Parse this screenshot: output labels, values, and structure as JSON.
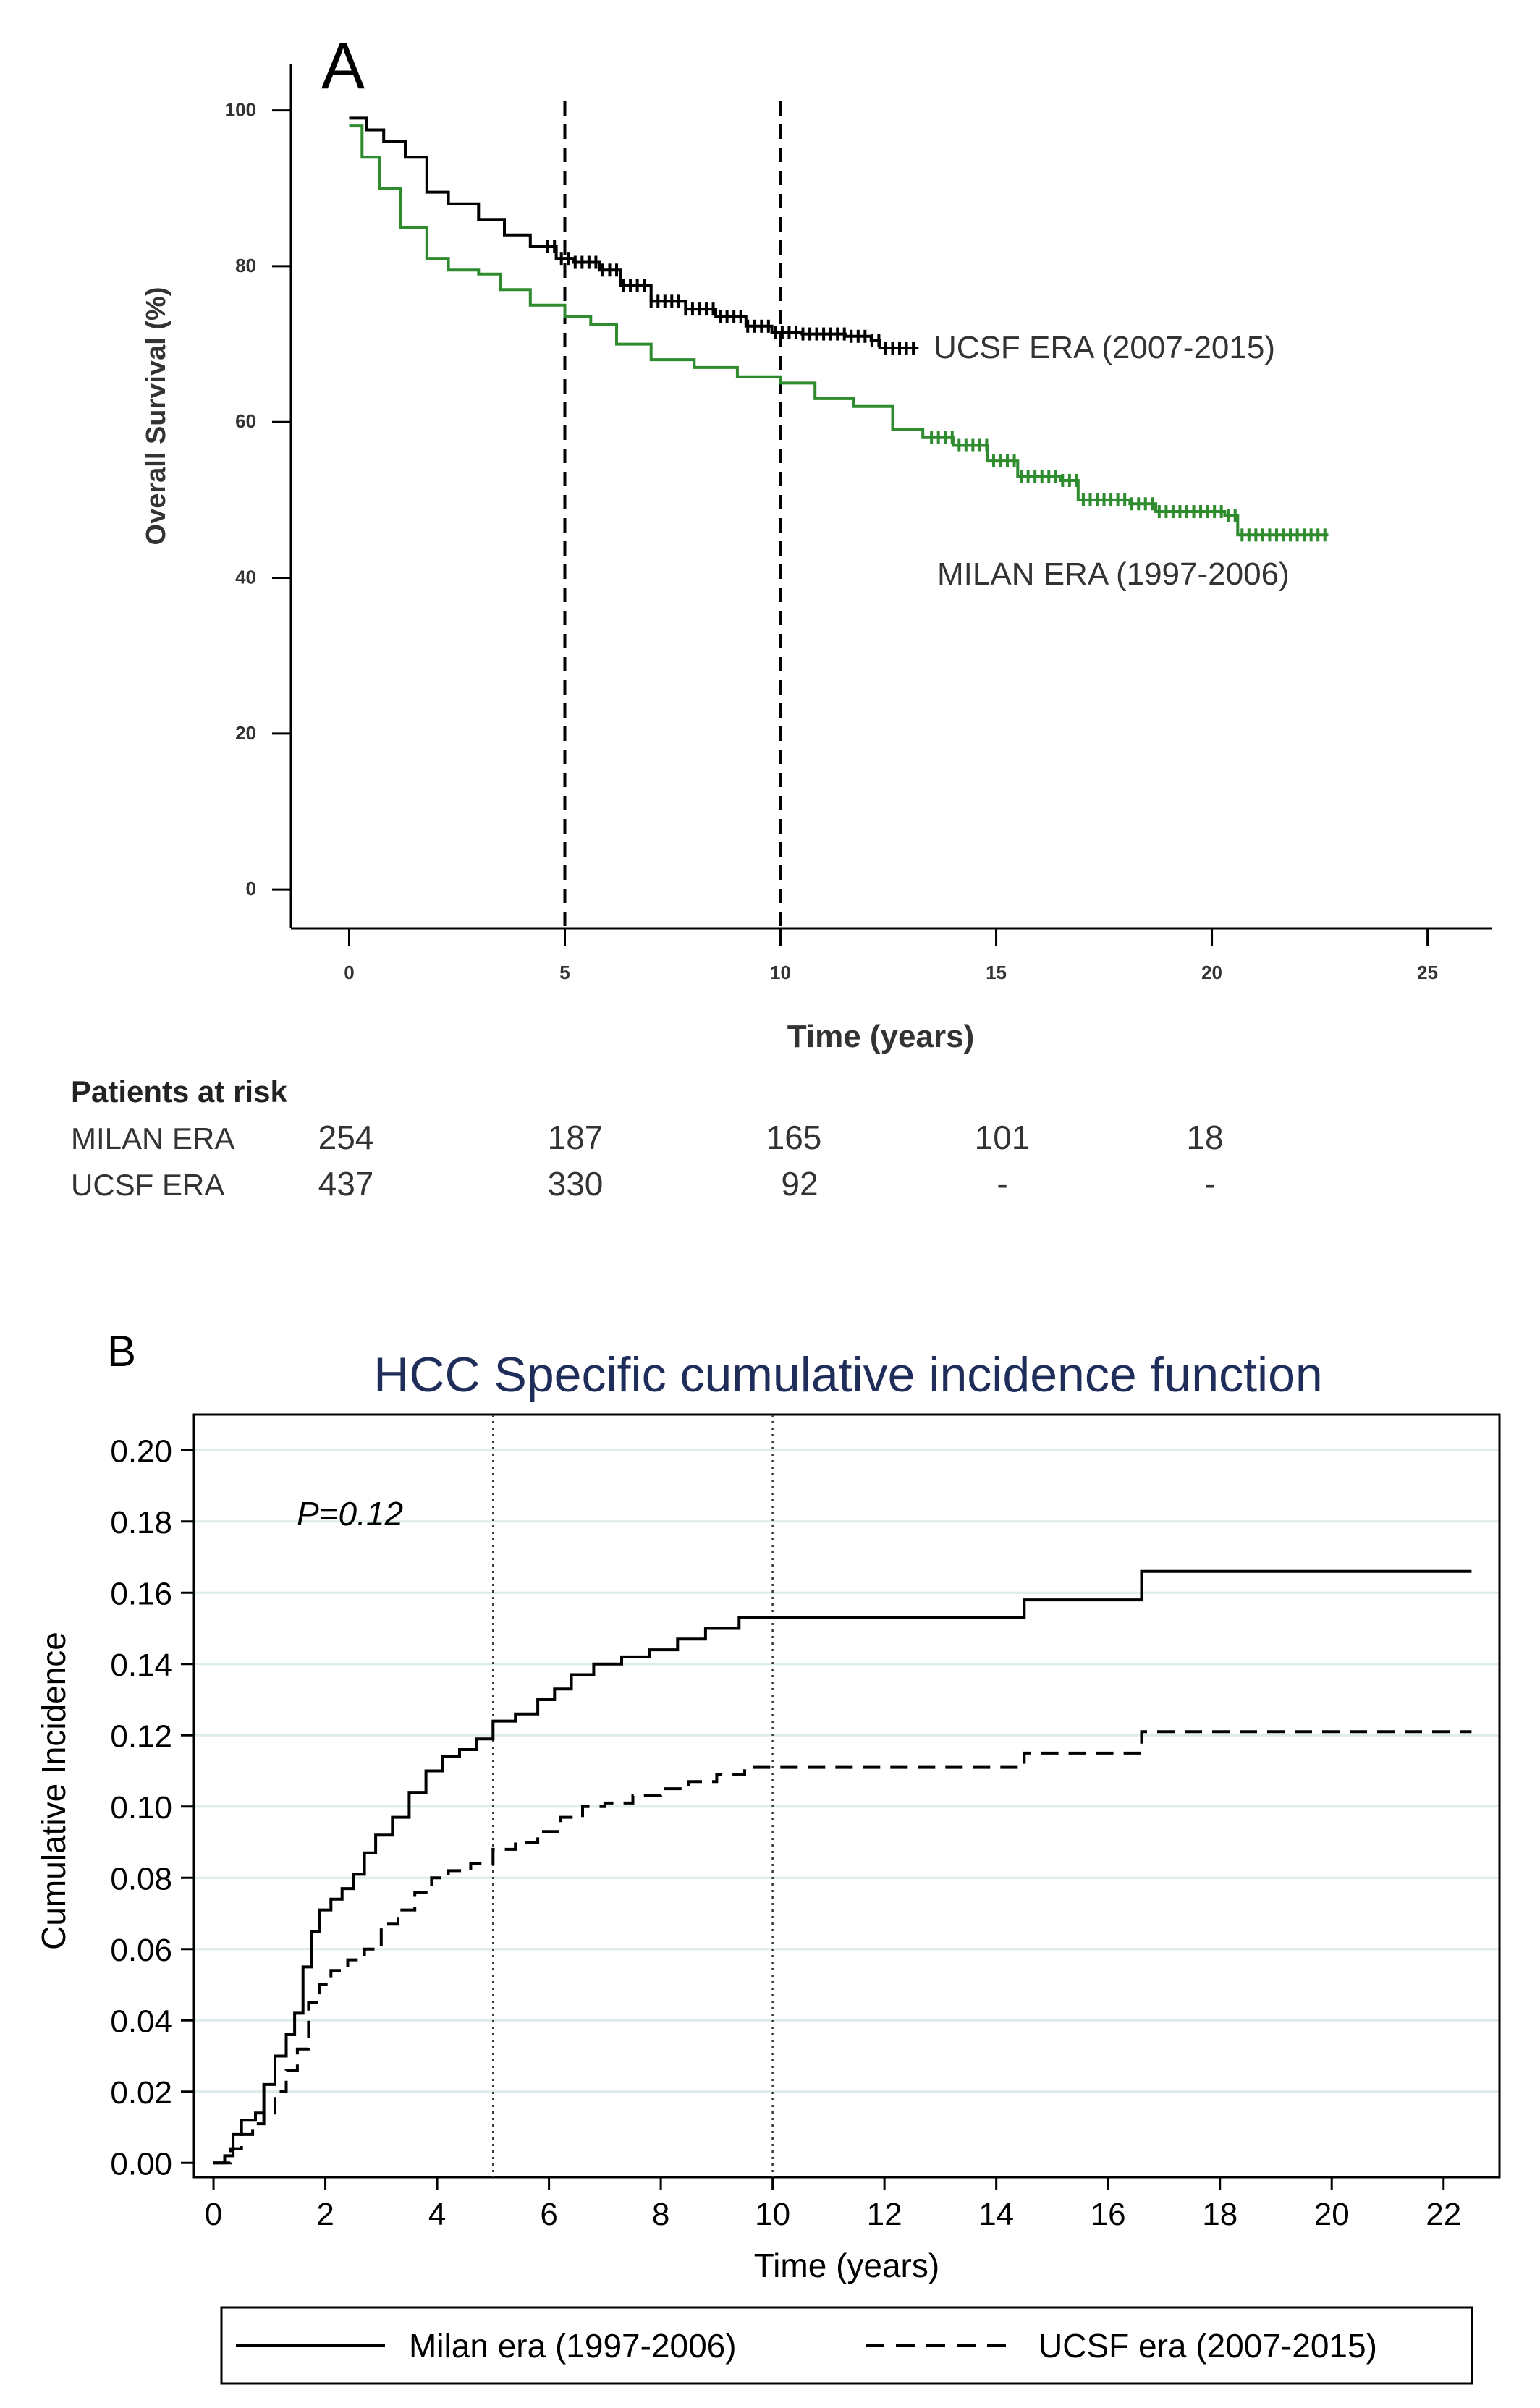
{
  "colors": {
    "black": "#000000",
    "green": "#2e8b2e",
    "title_blue": "#1f2d5a",
    "grid": "#dcecec"
  },
  "chart_data": [
    {
      "panel": "A",
      "type": "line",
      "title": "",
      "xlabel": "Time (years)",
      "ylabel": "Overall Survival (%)",
      "xlim": [
        -1.35,
        26.5
      ],
      "ylim": [
        -5,
        106
      ],
      "xticks": [
        0,
        5,
        10,
        15,
        20,
        25
      ],
      "xtick_labels": [
        "0",
        "5",
        "10",
        "15",
        "20",
        "25"
      ],
      "yticks": [
        0,
        20,
        40,
        60,
        80,
        100
      ],
      "ytick_labels": [
        "0",
        "20",
        "40",
        "60",
        "80",
        "100"
      ],
      "reference_lines": [
        5,
        10
      ],
      "series": [
        {
          "name": "UCSF ERA (2007-2015)",
          "label": "UCSF ERA (2007-2015)",
          "color": "#000000",
          "points": [
            [
              0,
              99
            ],
            [
              0.4,
              97.5
            ],
            [
              0.8,
              96
            ],
            [
              1.3,
              94
            ],
            [
              1.8,
              89.5
            ],
            [
              2.3,
              88
            ],
            [
              3,
              86
            ],
            [
              3.6,
              84
            ],
            [
              4.2,
              82.5
            ],
            [
              4.8,
              81
            ],
            [
              5.2,
              80.5
            ],
            [
              5.8,
              79.5
            ],
            [
              6.3,
              77.5
            ],
            [
              7,
              75.5
            ],
            [
              7.8,
              74.5
            ],
            [
              8.5,
              73.5
            ],
            [
              9.2,
              72.3
            ],
            [
              9.8,
              71.5
            ],
            [
              10.5,
              71.3
            ],
            [
              11.5,
              71
            ],
            [
              12.1,
              70.5
            ],
            [
              12.3,
              69.5
            ],
            [
              13.2,
              69.5
            ]
          ],
          "censor_from": 4.6,
          "censor_to": 13.2
        },
        {
          "name": "MILAN ERA (1997-2006)",
          "label": "MILAN ERA (1997-2006)",
          "color": "#2e8b2e",
          "points": [
            [
              0,
              98
            ],
            [
              0.3,
              94
            ],
            [
              0.7,
              90
            ],
            [
              1.2,
              85
            ],
            [
              1.8,
              81
            ],
            [
              2.3,
              79.5
            ],
            [
              3,
              79
            ],
            [
              3.5,
              77
            ],
            [
              4.2,
              75
            ],
            [
              5,
              73.5
            ],
            [
              5.6,
              72.5
            ],
            [
              6.2,
              70
            ],
            [
              7,
              68
            ],
            [
              8,
              67
            ],
            [
              9,
              65.8
            ],
            [
              10,
              65
            ],
            [
              10.8,
              63
            ],
            [
              11.7,
              62
            ],
            [
              12.6,
              59
            ],
            [
              13.3,
              58
            ],
            [
              14,
              57
            ],
            [
              14.8,
              55
            ],
            [
              15.5,
              53
            ],
            [
              16.5,
              52.5
            ],
            [
              16.9,
              50
            ],
            [
              18.1,
              49.5
            ],
            [
              18.7,
              48.5
            ],
            [
              20.3,
              48
            ],
            [
              20.6,
              45.5
            ],
            [
              22.7,
              45.5
            ]
          ],
          "censor_from": 13.5,
          "censor_to": 22.7
        }
      ],
      "risk_table": {
        "title": "Patients at risk",
        "rows": [
          {
            "label": "MILAN ERA",
            "values": [
              "254",
              "187",
              "165",
              "101",
              "18"
            ]
          },
          {
            "label": "UCSF ERA",
            "values": [
              "437",
              "330",
              "92",
              "-",
              "-"
            ]
          }
        ]
      }
    },
    {
      "panel": "B",
      "type": "line",
      "title": "HCC Specific cumulative incidence function",
      "xlabel": "Time (years)",
      "ylabel": "Cumulative Incidence",
      "xlim": [
        -0.35,
        23
      ],
      "ylim": [
        -0.004,
        0.21
      ],
      "xticks": [
        0,
        2,
        4,
        6,
        8,
        10,
        12,
        14,
        16,
        18,
        20,
        22
      ],
      "xtick_labels": [
        "0",
        "2",
        "4",
        "6",
        "8",
        "10",
        "12",
        "14",
        "16",
        "18",
        "20",
        "22"
      ],
      "yticks": [
        0,
        0.02,
        0.04,
        0.06,
        0.08,
        0.1,
        0.12,
        0.14,
        0.16,
        0.18,
        0.2
      ],
      "ytick_labels": [
        "0.00",
        "0.02",
        "0.04",
        "0.06",
        "0.08",
        "0.10",
        "0.12",
        "0.14",
        "0.16",
        "0.18",
        "0.20"
      ],
      "gridlines": true,
      "reference_lines": [
        5,
        10
      ],
      "annotation": "P=0.12",
      "legend_position": "bottom",
      "series": [
        {
          "name": "Milan era (1997-2006)",
          "style": "solid",
          "points": [
            [
              0,
              0
            ],
            [
              0.2,
              0.002
            ],
            [
              0.35,
              0.008
            ],
            [
              0.5,
              0.012
            ],
            [
              0.75,
              0.014
            ],
            [
              0.9,
              0.022
            ],
            [
              1.1,
              0.03
            ],
            [
              1.3,
              0.036
            ],
            [
              1.45,
              0.042
            ],
            [
              1.6,
              0.055
            ],
            [
              1.75,
              0.065
            ],
            [
              1.9,
              0.071
            ],
            [
              2.1,
              0.074
            ],
            [
              2.3,
              0.077
            ],
            [
              2.5,
              0.081
            ],
            [
              2.7,
              0.087
            ],
            [
              2.9,
              0.092
            ],
            [
              3.2,
              0.097
            ],
            [
              3.5,
              0.104
            ],
            [
              3.8,
              0.11
            ],
            [
              4.1,
              0.114
            ],
            [
              4.4,
              0.116
            ],
            [
              4.7,
              0.119
            ],
            [
              5,
              0.124
            ],
            [
              5.4,
              0.126
            ],
            [
              5.8,
              0.13
            ],
            [
              6.1,
              0.133
            ],
            [
              6.4,
              0.137
            ],
            [
              6.8,
              0.14
            ],
            [
              7.3,
              0.142
            ],
            [
              7.8,
              0.144
            ],
            [
              8.3,
              0.147
            ],
            [
              8.8,
              0.15
            ],
            [
              9.4,
              0.153
            ],
            [
              10.5,
              0.153
            ],
            [
              14.5,
              0.153
            ],
            [
              14.5,
              0.158
            ],
            [
              16.6,
              0.158
            ],
            [
              16.6,
              0.166
            ],
            [
              22.5,
              0.166
            ]
          ]
        },
        {
          "name": "UCSF era (2007-2015)",
          "style": "dashed",
          "points": [
            [
              0,
              0
            ],
            [
              0.3,
              0.004
            ],
            [
              0.5,
              0.008
            ],
            [
              0.7,
              0.011
            ],
            [
              0.9,
              0.014
            ],
            [
              1.1,
              0.02
            ],
            [
              1.3,
              0.026
            ],
            [
              1.5,
              0.032
            ],
            [
              1.7,
              0.045
            ],
            [
              1.9,
              0.05
            ],
            [
              2.1,
              0.054
            ],
            [
              2.4,
              0.057
            ],
            [
              2.7,
              0.06
            ],
            [
              3,
              0.067
            ],
            [
              3.3,
              0.071
            ],
            [
              3.6,
              0.076
            ],
            [
              3.9,
              0.08
            ],
            [
              4.2,
              0.082
            ],
            [
              4.6,
              0.084
            ],
            [
              5,
              0.088
            ],
            [
              5.4,
              0.09
            ],
            [
              5.8,
              0.093
            ],
            [
              6.2,
              0.097
            ],
            [
              6.6,
              0.1
            ],
            [
              7,
              0.101
            ],
            [
              7.5,
              0.103
            ],
            [
              8,
              0.105
            ],
            [
              8.5,
              0.107
            ],
            [
              9,
              0.109
            ],
            [
              9.5,
              0.111
            ],
            [
              14.5,
              0.111
            ],
            [
              14.5,
              0.115
            ],
            [
              16.6,
              0.115
            ],
            [
              16.6,
              0.121
            ],
            [
              22.5,
              0.121
            ]
          ]
        }
      ]
    }
  ]
}
